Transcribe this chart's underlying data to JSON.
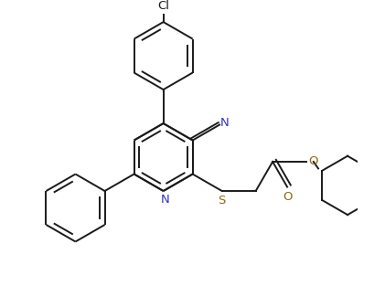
{
  "bg_color": "#ffffff",
  "line_color": "#1a1a1a",
  "n_color": "#3333cc",
  "s_color": "#8B6914",
  "o_color": "#8B6914",
  "line_width": 1.4,
  "figsize": [
    4.21,
    3.13
  ],
  "dpi": 100,
  "xlim": [
    0.0,
    8.5
  ],
  "ylim": [
    -0.5,
    6.5
  ]
}
